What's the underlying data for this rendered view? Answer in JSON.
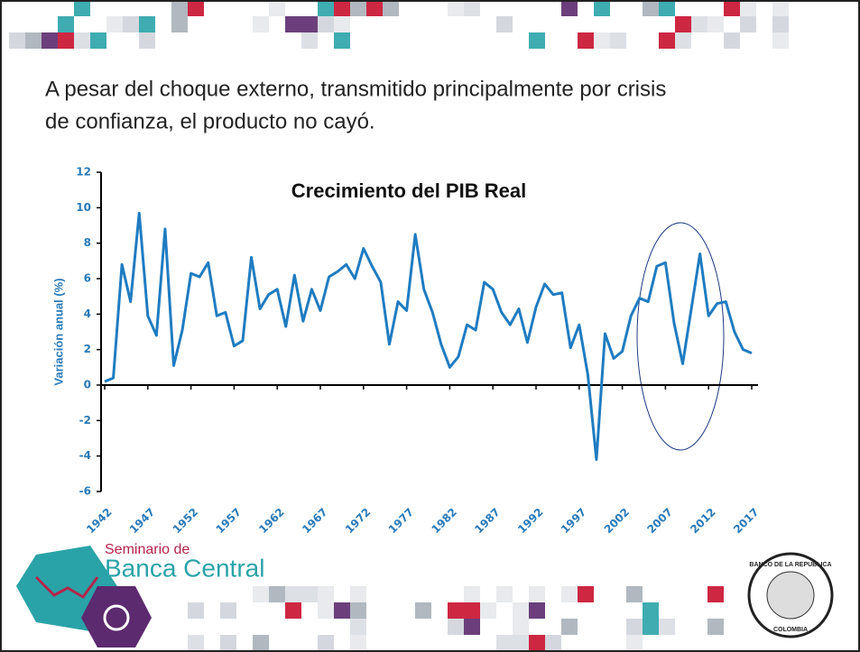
{
  "slide": {
    "text_line_1": "A pesar del choque externo, transmitido principalmente por crisis",
    "text_line_2": "de confianza, el producto no cayó.",
    "logo_small": "Seminario de",
    "logo_large": "Banca Central",
    "seal_top": "BANCO DE LA REPUBLICA",
    "seal_bottom": "COLOMBIA"
  },
  "chart_data": {
    "type": "line",
    "title": "Crecimiento del PIB Real",
    "y_label": "Variación anual (%)",
    "x": [
      1942,
      1943,
      1944,
      1945,
      1946,
      1947,
      1948,
      1949,
      1950,
      1951,
      1952,
      1953,
      1954,
      1955,
      1956,
      1957,
      1958,
      1959,
      1960,
      1961,
      1962,
      1963,
      1964,
      1965,
      1966,
      1967,
      1968,
      1969,
      1970,
      1971,
      1972,
      1973,
      1974,
      1975,
      1976,
      1977,
      1978,
      1979,
      1980,
      1981,
      1982,
      1983,
      1984,
      1985,
      1986,
      1987,
      1988,
      1989,
      1990,
      1991,
      1992,
      1993,
      1994,
      1995,
      1996,
      1997,
      1998,
      1999,
      2000,
      2001,
      2002,
      2003,
      2004,
      2005,
      2006,
      2007,
      2008,
      2009,
      2010,
      2011,
      2012,
      2013,
      2014,
      2015,
      2016,
      2017
    ],
    "series": [
      {
        "name": "PIB",
        "color": "#1f7cc1",
        "values": [
          0.2,
          0.4,
          6.8,
          4.7,
          9.7,
          3.9,
          2.8,
          8.8,
          1.1,
          3.1,
          6.3,
          6.1,
          6.9,
          3.9,
          4.1,
          2.2,
          2.5,
          7.2,
          4.3,
          5.1,
          5.4,
          3.3,
          6.2,
          3.6,
          5.4,
          4.2,
          6.1,
          6.4,
          6.8,
          6.0,
          7.7,
          6.7,
          5.8,
          2.3,
          4.7,
          4.2,
          8.5,
          5.4,
          4.1,
          2.3,
          1.0,
          1.6,
          3.4,
          3.1,
          5.8,
          5.4,
          4.1,
          3.4,
          4.3,
          2.4,
          4.4,
          5.7,
          5.1,
          5.2,
          2.1,
          3.4,
          0.6,
          -4.2,
          2.9,
          1.5,
          1.9,
          3.9,
          4.9,
          4.7,
          6.7,
          6.9,
          3.5,
          1.2,
          4.3,
          7.4,
          3.9,
          4.6,
          4.7,
          3.0,
          2.0,
          1.8
        ]
      }
    ],
    "xlim": [
      1942,
      2017
    ],
    "xticks": [
      1942,
      1947,
      1952,
      1957,
      1962,
      1967,
      1972,
      1977,
      1982,
      1987,
      1992,
      1997,
      2002,
      2007,
      2012,
      2017
    ],
    "ylim": [
      -6,
      12
    ],
    "yticks": [
      -6,
      -4,
      -2,
      0,
      2,
      4,
      6,
      8,
      10,
      12
    ],
    "grid": false
  }
}
